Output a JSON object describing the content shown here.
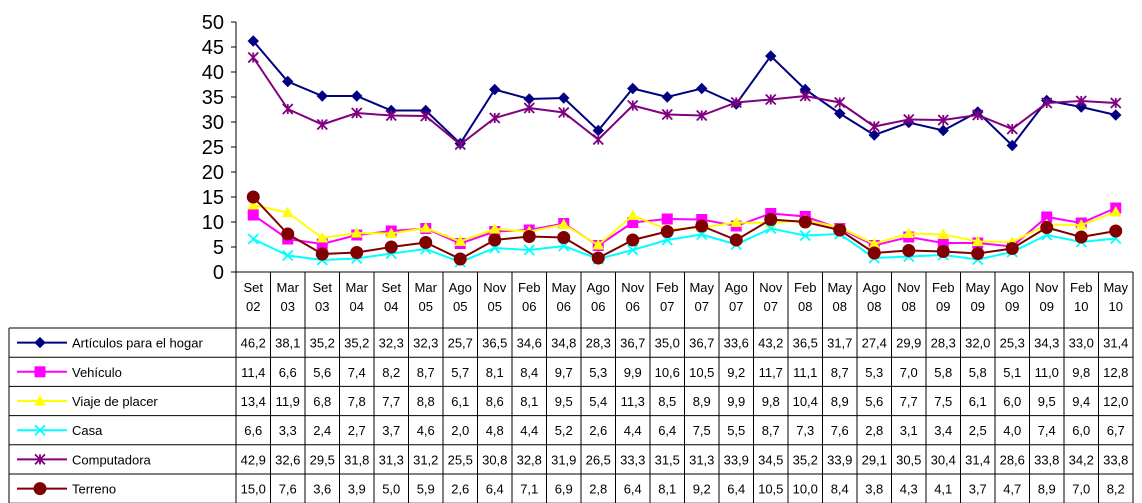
{
  "chart_data": {
    "type": "line",
    "title": "",
    "xlabel": "",
    "ylabel": "",
    "ylim": [
      0,
      50
    ],
    "yticks": [
      0,
      5,
      10,
      15,
      20,
      25,
      30,
      35,
      40,
      45,
      50
    ],
    "grid": false,
    "legend_placement": "data-table-left",
    "categories": [
      {
        "month": "Set",
        "year": "02"
      },
      {
        "month": "Mar",
        "year": "03"
      },
      {
        "month": "Set",
        "year": "03"
      },
      {
        "month": "Mar",
        "year": "04"
      },
      {
        "month": "Set",
        "year": "04"
      },
      {
        "month": "Mar",
        "year": "05"
      },
      {
        "month": "Ago",
        "year": "05"
      },
      {
        "month": "Nov",
        "year": "05"
      },
      {
        "month": "Feb",
        "year": "06"
      },
      {
        "month": "May",
        "year": "06"
      },
      {
        "month": "Ago",
        "year": "06"
      },
      {
        "month": "Nov",
        "year": "06"
      },
      {
        "month": "Feb",
        "year": "07"
      },
      {
        "month": "May",
        "year": "07"
      },
      {
        "month": "Ago",
        "year": "07"
      },
      {
        "month": "Nov",
        "year": "07"
      },
      {
        "month": "Feb",
        "year": "08"
      },
      {
        "month": "May",
        "year": "08"
      },
      {
        "month": "Ago",
        "year": "08"
      },
      {
        "month": "Nov",
        "year": "08"
      },
      {
        "month": "Feb",
        "year": "09"
      },
      {
        "month": "May",
        "year": "09"
      },
      {
        "month": "Ago",
        "year": "09"
      },
      {
        "month": "Nov",
        "year": "09"
      },
      {
        "month": "Feb",
        "year": "10"
      },
      {
        "month": "May",
        "year": "10"
      }
    ],
    "series": [
      {
        "name": "Artículos para el hogar",
        "color": "#000080",
        "marker": "diamond",
        "values": [
          "46,2",
          "38,1",
          "35,2",
          "35,2",
          "32,3",
          "32,3",
          "25,7",
          "36,5",
          "34,6",
          "34,8",
          "28,3",
          "36,7",
          "35,0",
          "36,7",
          "33,6",
          "43,2",
          "36,5",
          "31,7",
          "27,4",
          "29,9",
          "28,3",
          "32,0",
          "25,3",
          "34,3",
          "33,0",
          "31,4"
        ]
      },
      {
        "name": "Vehículo",
        "color": "#ff00ff",
        "marker": "square",
        "values": [
          "11,4",
          "6,6",
          "5,6",
          "7,4",
          "8,2",
          "8,7",
          "5,7",
          "8,1",
          "8,4",
          "9,7",
          "5,3",
          "9,9",
          "10,6",
          "10,5",
          "9,2",
          "11,7",
          "11,1",
          "8,7",
          "5,3",
          "7,0",
          "5,8",
          "5,8",
          "5,1",
          "11,0",
          "9,8",
          "12,8"
        ]
      },
      {
        "name": "Viaje de placer",
        "color": "#ffff00",
        "marker": "triangle",
        "values": [
          "13,4",
          "11,9",
          "6,8",
          "7,8",
          "7,7",
          "8,8",
          "6,1",
          "8,6",
          "8,1",
          "9,5",
          "5,4",
          "11,3",
          "8,5",
          "8,9",
          "9,9",
          "9,8",
          "10,4",
          "8,9",
          "5,6",
          "7,7",
          "7,5",
          "6,1",
          "6,0",
          "9,5",
          "9,4",
          "12,0"
        ]
      },
      {
        "name": "Casa",
        "color": "#00ffff",
        "marker": "x",
        "values": [
          "6,6",
          "3,3",
          "2,4",
          "2,7",
          "3,7",
          "4,6",
          "2,0",
          "4,8",
          "4,4",
          "5,2",
          "2,6",
          "4,4",
          "6,4",
          "7,5",
          "5,5",
          "8,7",
          "7,3",
          "7,6",
          "2,8",
          "3,1",
          "3,4",
          "2,5",
          "4,0",
          "7,4",
          "6,0",
          "6,7"
        ]
      },
      {
        "name": "Computadora",
        "color": "#800080",
        "marker": "star",
        "values": [
          "42,9",
          "32,6",
          "29,5",
          "31,8",
          "31,3",
          "31,2",
          "25,5",
          "30,8",
          "32,8",
          "31,9",
          "26,5",
          "33,3",
          "31,5",
          "31,3",
          "33,9",
          "34,5",
          "35,2",
          "33,9",
          "29,1",
          "30,5",
          "30,4",
          "31,4",
          "28,6",
          "33,8",
          "34,2",
          "33,8"
        ]
      },
      {
        "name": "Terreno",
        "color": "#800000",
        "marker": "circle",
        "values": [
          "15,0",
          "7,6",
          "3,6",
          "3,9",
          "5,0",
          "5,9",
          "2,6",
          "6,4",
          "7,1",
          "6,9",
          "2,8",
          "6,4",
          "8,1",
          "9,2",
          "6,4",
          "10,5",
          "10,0",
          "8,4",
          "3,8",
          "4,3",
          "4,1",
          "3,7",
          "4,7",
          "8,9",
          "7,0",
          "8,2"
        ]
      }
    ]
  }
}
